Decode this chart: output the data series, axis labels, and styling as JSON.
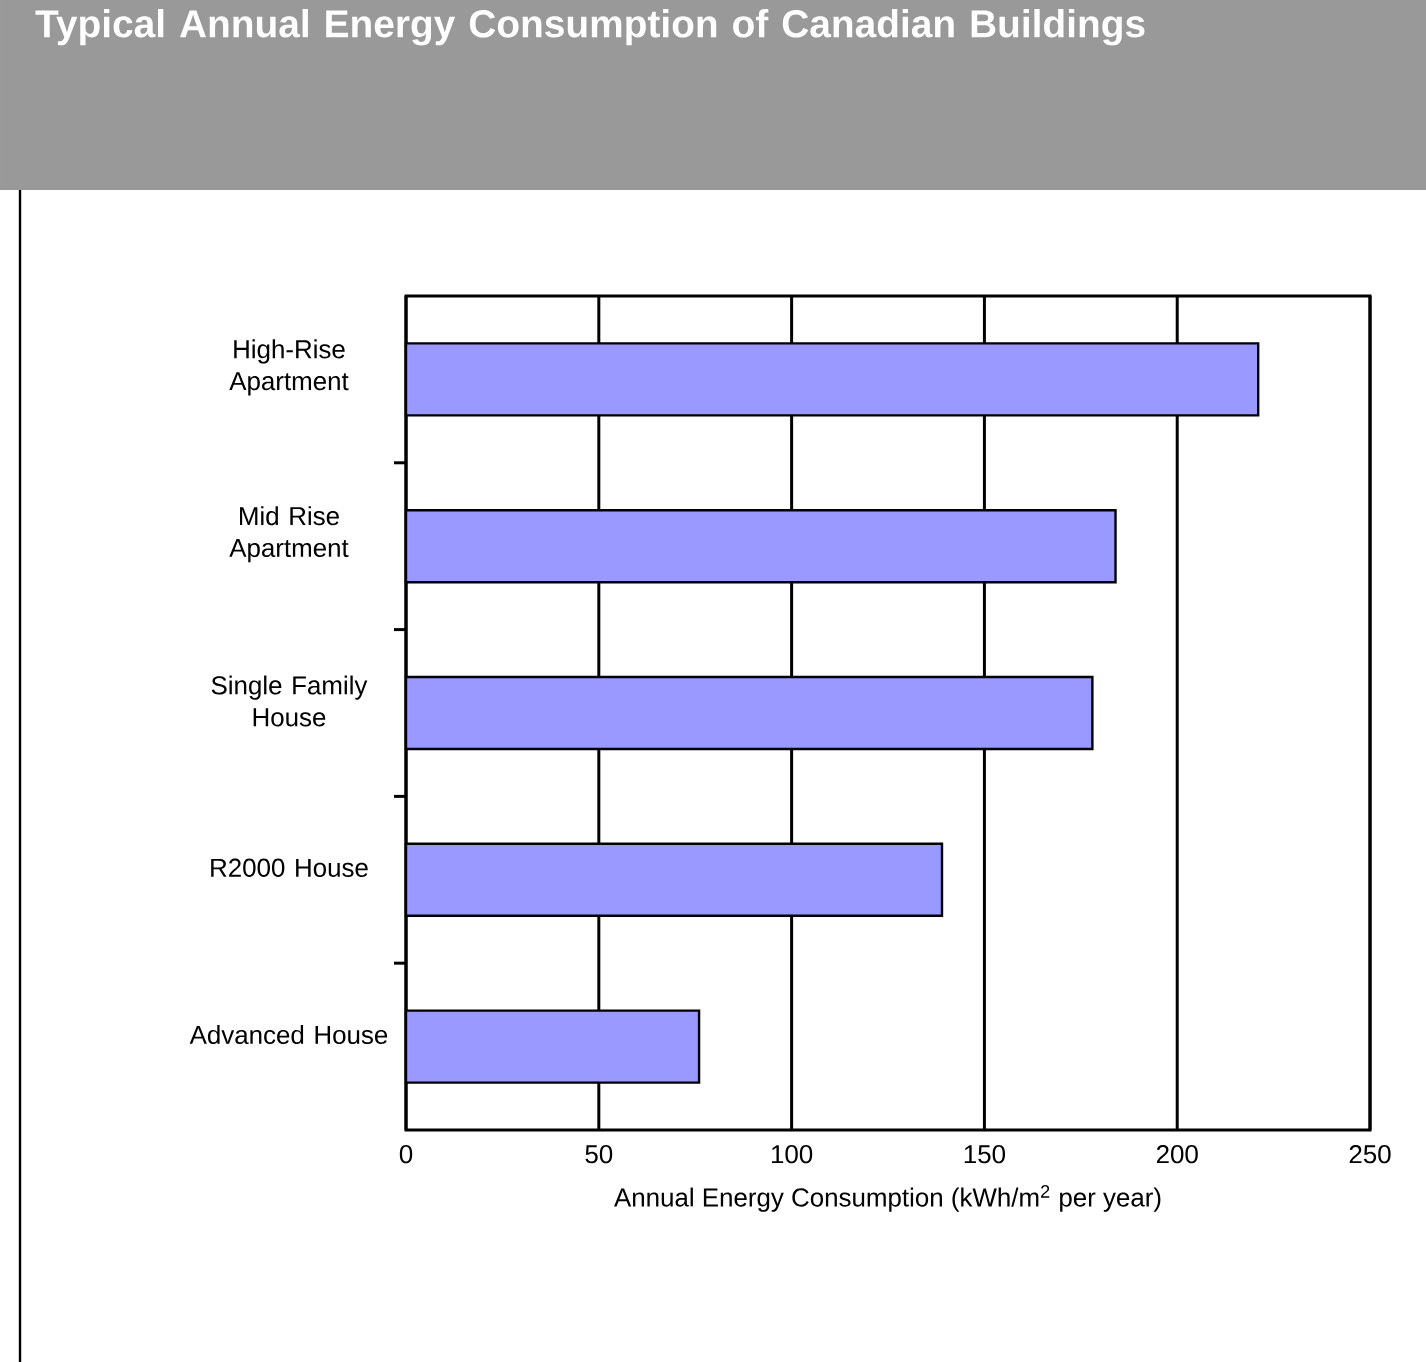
{
  "chart_data": {
    "type": "bar",
    "orientation": "horizontal",
    "title": "Typical Annual Energy Consumption of Canadian Buildings",
    "categories": [
      "High-Rise Apartment",
      "Mid Rise Apartment",
      "Single Family House",
      "R2000 House",
      "Advanced House"
    ],
    "values": [
      221,
      184,
      178,
      139,
      76
    ],
    "color": "#9999ff",
    "xlabel": "Annual Energy Consumption (kWh/m$^{2}$ per year)",
    "xlim": [
      0,
      250
    ],
    "xticks": [
      0,
      50,
      100,
      150,
      200,
      250
    ],
    "grid": "x"
  }
}
